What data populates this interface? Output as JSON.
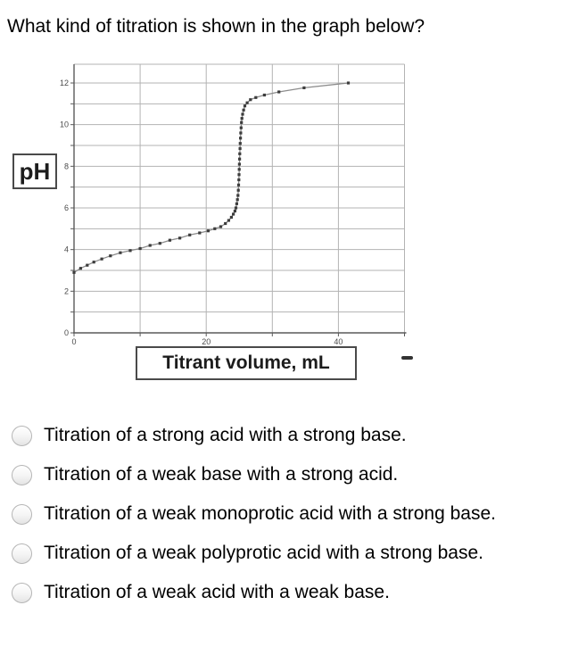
{
  "question": "What kind of titration is shown in the graph below?",
  "graph": {
    "y_axis_box_label": "pH",
    "x_axis_box_label": "Titrant volume, mL",
    "dash_mark": "-"
  },
  "chart_data": {
    "type": "line",
    "title": "",
    "xlabel": "Titrant volume, mL",
    "ylabel": "pH",
    "xlim": [
      0,
      50
    ],
    "ylim": [
      0,
      12.9
    ],
    "x_ticks_every": 10,
    "y_ticks_every": 1,
    "grid": true,
    "legend_position": "none",
    "x_tick_labels": [
      {
        "value": 0,
        "label": "0"
      },
      {
        "value": 20,
        "label": "20"
      },
      {
        "value": 40,
        "label": "40"
      }
    ],
    "y_tick_labels": [
      {
        "value": 0,
        "label": "0"
      },
      {
        "value": 2,
        "label": "2"
      },
      {
        "value": 4,
        "label": "4"
      },
      {
        "value": 6,
        "label": "6"
      },
      {
        "value": 8,
        "label": "8"
      },
      {
        "value": 10,
        "label": "10"
      },
      {
        "value": 12,
        "label": "12"
      }
    ],
    "series": [
      {
        "name": "titration curve",
        "marker": "square",
        "points": [
          [
            0,
            2.9
          ],
          [
            1,
            3.1
          ],
          [
            2,
            3.25
          ],
          [
            3,
            3.4
          ],
          [
            4.2,
            3.55
          ],
          [
            5.5,
            3.7
          ],
          [
            7,
            3.85
          ],
          [
            8.5,
            3.95
          ],
          [
            10,
            4.05
          ],
          [
            11.5,
            4.2
          ],
          [
            13,
            4.3
          ],
          [
            14.5,
            4.45
          ],
          [
            16,
            4.55
          ],
          [
            17.5,
            4.7
          ],
          [
            19,
            4.8
          ],
          [
            20.3,
            4.9
          ],
          [
            21.3,
            5.0
          ],
          [
            22.2,
            5.1
          ],
          [
            22.9,
            5.25
          ],
          [
            23.4,
            5.4
          ],
          [
            23.8,
            5.55
          ],
          [
            24.1,
            5.7
          ],
          [
            24.35,
            5.85
          ],
          [
            24.5,
            6.0
          ],
          [
            24.62,
            6.2
          ],
          [
            24.72,
            6.4
          ],
          [
            24.8,
            6.6
          ],
          [
            24.86,
            6.85
          ],
          [
            24.9,
            7.1
          ],
          [
            24.94,
            7.35
          ],
          [
            24.97,
            7.6
          ],
          [
            25.0,
            7.85
          ],
          [
            25.02,
            8.1
          ],
          [
            25.05,
            8.35
          ],
          [
            25.08,
            8.6
          ],
          [
            25.11,
            8.85
          ],
          [
            25.14,
            9.1
          ],
          [
            25.18,
            9.35
          ],
          [
            25.22,
            9.6
          ],
          [
            25.27,
            9.85
          ],
          [
            25.33,
            10.1
          ],
          [
            25.4,
            10.3
          ],
          [
            25.5,
            10.5
          ],
          [
            25.65,
            10.7
          ],
          [
            25.85,
            10.9
          ],
          [
            26.2,
            11.05
          ],
          [
            26.7,
            11.2
          ],
          [
            27.5,
            11.3
          ],
          [
            28.8,
            11.42
          ],
          [
            31,
            11.57
          ],
          [
            34.8,
            11.77
          ],
          [
            41.5,
            12.0
          ]
        ]
      }
    ]
  },
  "options": [
    {
      "label": "Titration of a strong acid with a strong base."
    },
    {
      "label": "Titration of a weak base with a strong acid."
    },
    {
      "label": "Titration of a weak monoprotic acid with a strong base."
    },
    {
      "label": "Titration of a weak polyprotic acid with a strong base."
    },
    {
      "label": "Titration of a weak acid with a weak base."
    }
  ],
  "selected_option": null,
  "colors": {
    "grid": "#b3b3b3",
    "axis": "#5a5a5a",
    "tick_text": "#4a4a4a",
    "curve_line": "#8c8c8c",
    "marker": "#3c3c3c"
  }
}
